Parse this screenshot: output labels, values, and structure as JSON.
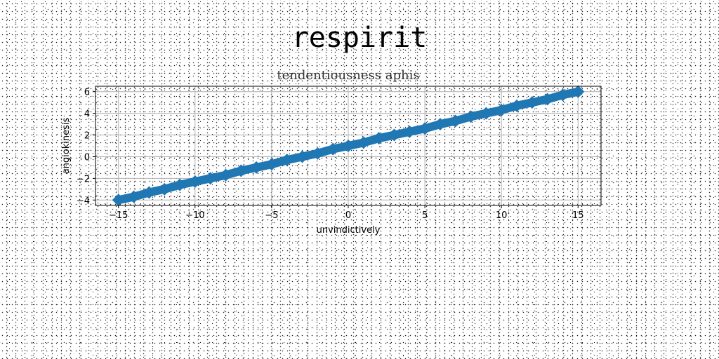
{
  "chart_data": {
    "type": "line",
    "suptitle": "respirit",
    "title": "tendentiousness aphis",
    "xlabel": "unvindictively",
    "ylabel": "angiokinesis",
    "xlim": [
      -16.5,
      16.5
    ],
    "ylim": [
      -4.5,
      6.5
    ],
    "xticks": [
      -15,
      -10,
      -5,
      0,
      5,
      10,
      15
    ],
    "yticks": [
      -4,
      -2,
      0,
      2,
      4,
      6
    ],
    "grid": true,
    "color": "#1f77b4",
    "marker": "diamond",
    "series": [
      {
        "name": "",
        "x": [
          -15,
          -14,
          -13,
          -12,
          -11,
          -10,
          -9,
          -8,
          -7,
          -6,
          -5,
          -4,
          -3,
          -2,
          -1,
          0,
          1,
          2,
          3,
          4,
          5,
          6,
          7,
          8,
          9,
          10,
          11,
          12,
          13,
          14,
          15
        ],
        "y": [
          -4.0,
          -3.7,
          -3.3,
          -3.0,
          -2.6,
          -2.3,
          -2.0,
          -1.7,
          -1.3,
          -1.0,
          -0.7,
          -0.3,
          0.0,
          0.3,
          0.7,
          1.0,
          1.3,
          1.7,
          2.0,
          2.3,
          2.6,
          3.0,
          3.3,
          3.7,
          4.0,
          4.3,
          4.7,
          5.0,
          5.3,
          5.7,
          6.0
        ]
      }
    ]
  }
}
